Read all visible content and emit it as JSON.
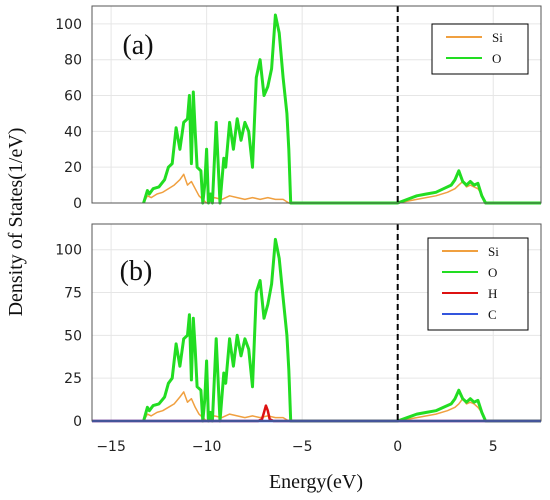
{
  "figure": {
    "ylabel": "Density of States(1/eV)",
    "xlabel": "Energy(eV)"
  },
  "chart_data": [
    {
      "type": "line",
      "panel_label": "(a)",
      "xlim": [
        -16,
        7.5
      ],
      "ylim": [
        0,
        110
      ],
      "yticks": [
        0,
        20,
        40,
        60,
        80,
        100
      ],
      "xticks": [
        -15,
        -10,
        -5,
        0,
        5
      ],
      "grid": true,
      "legend_position": "top-right",
      "fermi_line_x": 0,
      "series": [
        {
          "name": "Si",
          "color": "#f0a040",
          "x": [
            -13.3,
            -13.1,
            -12.9,
            -12.6,
            -12.3,
            -12.0,
            -11.7,
            -11.4,
            -11.2,
            -11.0,
            -10.8,
            -10.6,
            -10.4,
            -10.2,
            -10.0,
            -9.8,
            -9.6,
            -9.2,
            -8.8,
            -8.4,
            -8.0,
            -7.6,
            -7.2,
            -6.8,
            -6.4,
            -6.0,
            -5.7,
            -5.0,
            -2.0,
            0.0,
            1.0,
            2.0,
            2.6,
            3.0,
            3.2,
            3.4,
            3.6,
            3.8,
            4.0,
            4.2,
            4.4,
            4.6,
            5.0,
            7.5
          ],
          "y": [
            0,
            4,
            3,
            5,
            6,
            8,
            10,
            13,
            16,
            10,
            12,
            8,
            4,
            2,
            0,
            1,
            3,
            2,
            4,
            3,
            2,
            3,
            2,
            3,
            2,
            2,
            0,
            0,
            0,
            0,
            2,
            4,
            6,
            8,
            10,
            12,
            9,
            10,
            9,
            8,
            5,
            0,
            0,
            0
          ]
        },
        {
          "name": "O",
          "color": "#22dd22",
          "x": [
            -13.3,
            -13.1,
            -13.0,
            -12.8,
            -12.5,
            -12.2,
            -12.0,
            -11.8,
            -11.6,
            -11.4,
            -11.2,
            -11.0,
            -10.9,
            -10.8,
            -10.7,
            -10.6,
            -10.5,
            -10.3,
            -10.2,
            -10.1,
            -10.0,
            -9.9,
            -9.8,
            -9.7,
            -9.5,
            -9.3,
            -9.1,
            -9.0,
            -8.8,
            -8.6,
            -8.4,
            -8.2,
            -8.0,
            -7.8,
            -7.6,
            -7.4,
            -7.2,
            -7.0,
            -6.8,
            -6.6,
            -6.4,
            -6.2,
            -6.0,
            -5.8,
            -5.7,
            -5.6,
            -5.0,
            -3.0,
            0.0,
            0.5,
            1.0,
            1.5,
            2.0,
            2.4,
            2.8,
            3.0,
            3.2,
            3.4,
            3.6,
            3.8,
            4.0,
            4.2,
            4.4,
            4.6,
            5.0,
            7.5
          ],
          "y": [
            0,
            7,
            5,
            8,
            9,
            13,
            20,
            22,
            42,
            30,
            45,
            47,
            60,
            22,
            62,
            40,
            20,
            18,
            0,
            10,
            30,
            0,
            5,
            0,
            45,
            0,
            25,
            20,
            45,
            30,
            47,
            35,
            45,
            40,
            20,
            70,
            80,
            60,
            65,
            75,
            105,
            95,
            70,
            50,
            30,
            0,
            0,
            0,
            0,
            2,
            4,
            5,
            6,
            8,
            10,
            13,
            18,
            12,
            10,
            12,
            10,
            11,
            4,
            0,
            0,
            0
          ]
        }
      ]
    },
    {
      "type": "line",
      "panel_label": "(b)",
      "xlim": [
        -16,
        7.5
      ],
      "ylim": [
        0,
        115
      ],
      "yticks": [
        0,
        25,
        50,
        75,
        100
      ],
      "xticks": [
        -15,
        -10,
        -5,
        0,
        5
      ],
      "grid": true,
      "legend_position": "top-right",
      "fermi_line_x": 0,
      "series": [
        {
          "name": "Si",
          "color": "#f0a040",
          "x": [
            -13.3,
            -13.1,
            -12.9,
            -12.6,
            -12.3,
            -12.0,
            -11.7,
            -11.4,
            -11.2,
            -11.0,
            -10.8,
            -10.6,
            -10.4,
            -10.2,
            -10.0,
            -9.8,
            -9.6,
            -9.2,
            -8.8,
            -8.4,
            -8.0,
            -7.6,
            -7.2,
            -6.8,
            -6.4,
            -6.0,
            -5.7,
            -5.0,
            -2.0,
            0.0,
            1.0,
            2.0,
            2.6,
            3.0,
            3.2,
            3.4,
            3.6,
            3.8,
            4.0,
            4.2,
            4.4,
            4.6,
            5.0,
            7.5
          ],
          "y": [
            0,
            4,
            3,
            5,
            6,
            8,
            10,
            14,
            17,
            11,
            13,
            8,
            4,
            2,
            0,
            1,
            3,
            2,
            4,
            3,
            2,
            3,
            2,
            3,
            2,
            2,
            0,
            0,
            0,
            0,
            2,
            4,
            6,
            8,
            10,
            13,
            10,
            11,
            10,
            8,
            5,
            0,
            0,
            0
          ]
        },
        {
          "name": "O",
          "color": "#22dd22",
          "x": [
            -13.3,
            -13.1,
            -13.0,
            -12.8,
            -12.5,
            -12.2,
            -12.0,
            -11.8,
            -11.6,
            -11.4,
            -11.2,
            -11.0,
            -10.9,
            -10.8,
            -10.7,
            -10.6,
            -10.5,
            -10.3,
            -10.2,
            -10.1,
            -10.0,
            -9.9,
            -9.8,
            -9.7,
            -9.5,
            -9.3,
            -9.1,
            -9.0,
            -8.8,
            -8.6,
            -8.4,
            -8.2,
            -8.0,
            -7.8,
            -7.6,
            -7.4,
            -7.2,
            -7.0,
            -6.8,
            -6.6,
            -6.4,
            -6.2,
            -6.0,
            -5.8,
            -5.7,
            -5.6,
            -5.0,
            -3.0,
            0.0,
            0.5,
            1.0,
            1.5,
            2.0,
            2.4,
            2.8,
            3.0,
            3.2,
            3.4,
            3.6,
            3.8,
            4.0,
            4.2,
            4.4,
            4.6,
            5.0,
            7.5
          ],
          "y": [
            0,
            8,
            6,
            9,
            10,
            14,
            22,
            25,
            45,
            32,
            48,
            50,
            62,
            24,
            60,
            42,
            20,
            18,
            0,
            12,
            35,
            0,
            5,
            0,
            48,
            0,
            28,
            22,
            48,
            32,
            50,
            38,
            48,
            42,
            20,
            75,
            82,
            60,
            68,
            80,
            106,
            95,
            72,
            50,
            30,
            0,
            0,
            0,
            0,
            2,
            4,
            5,
            6,
            8,
            10,
            13,
            18,
            13,
            11,
            13,
            11,
            12,
            5,
            0,
            0,
            0
          ]
        },
        {
          "name": "H",
          "color": "#dd1111",
          "x": [
            -16,
            -7.3,
            -7.1,
            -7.0,
            -6.9,
            -6.8,
            -6.7,
            -6.5,
            7.5
          ],
          "y": [
            0,
            0,
            1,
            5,
            9,
            6,
            1,
            0,
            0
          ]
        },
        {
          "name": "C",
          "color": "#3355dd",
          "x": [
            -16,
            7.5
          ],
          "y": [
            0,
            0
          ]
        }
      ]
    }
  ]
}
